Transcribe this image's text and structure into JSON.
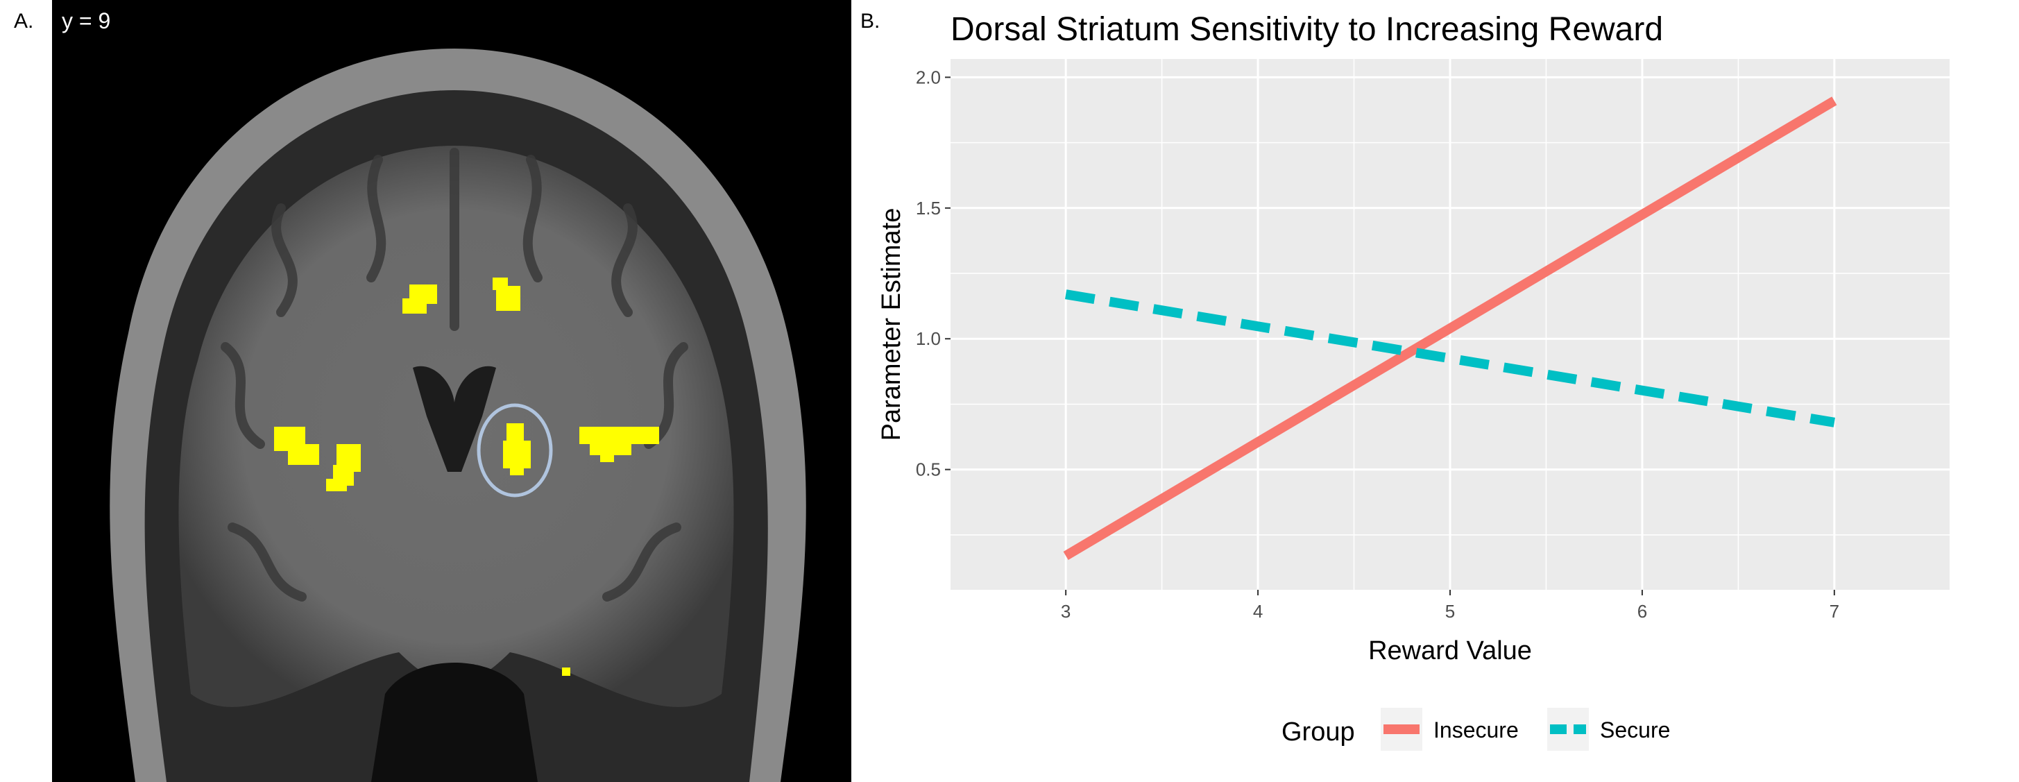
{
  "panels": {
    "a_label": "A.",
    "b_label": "B.",
    "slice_label": "y = 9"
  },
  "brain": {
    "background_color": "#000000",
    "activation_color": "#ffff00",
    "roi_circle_color": "#b0c4de"
  },
  "chart_data": {
    "type": "line",
    "title": "Dorsal Striatum Sensitivity to Increasing Reward",
    "xlabel": "Reward Value",
    "ylabel": "Parameter Estimate",
    "xlim": [
      2.4,
      7.6
    ],
    "ylim": [
      0.04,
      2.07
    ],
    "xticks": [
      3,
      4,
      5,
      6,
      7
    ],
    "yticks": [
      0.5,
      1.0,
      1.5,
      2.0
    ],
    "ytick_labels": [
      "0.5",
      "1.0",
      "1.5",
      "2.0"
    ],
    "grid": true,
    "panel_background": "#ebebeb",
    "legend_position": "bottom",
    "legend_title": "Group",
    "series": [
      {
        "name": "Insecure",
        "color": "#f8766d",
        "linestyle": "solid",
        "x": [
          3,
          7
        ],
        "y": [
          0.17,
          1.91
        ]
      },
      {
        "name": "Secure",
        "color": "#00bfc4",
        "linestyle": "dashed",
        "x": [
          3,
          7
        ],
        "y": [
          1.17,
          0.68
        ]
      }
    ]
  }
}
